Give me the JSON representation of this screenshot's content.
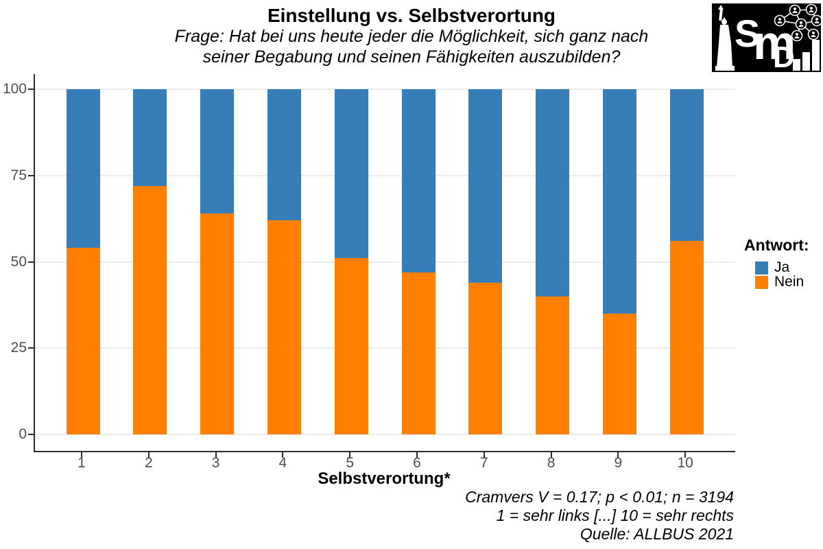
{
  "title": "Einstellung vs. Selbstverortung",
  "subtitle": [
    "Frage: Hat bei uns heute jeder die Möglichkeit, sich ganz nach",
    "seiner Begabung und seinen Fähigkeiten auszubilden?"
  ],
  "x_axis": {
    "title": "Selbstverortung*"
  },
  "y_axis": {
    "tick_values": [
      0,
      25,
      50,
      75,
      100
    ]
  },
  "legend": {
    "title": "Antwort:",
    "items": [
      {
        "label": "Ja",
        "color": "#377EB8"
      },
      {
        "label": "Nein",
        "color": "#FF7F00"
      }
    ]
  },
  "caption": [
    "Cramvers V = 0.17; p < 0.01; n = 3194",
    "1 = sehr links [...] 10 = sehr rechts",
    "Quelle: ALLBUS 2021"
  ],
  "logo": {
    "letters": [
      "S",
      "m",
      "D"
    ]
  },
  "chart_data": {
    "type": "bar",
    "stacked": true,
    "stack_unit": "percent",
    "categories": [
      "1",
      "2",
      "3",
      "4",
      "5",
      "6",
      "7",
      "8",
      "9",
      "10"
    ],
    "series": [
      {
        "name": "Ja",
        "color": "#377EB8",
        "values": [
          46,
          28,
          36,
          38,
          49,
          53,
          56,
          60,
          65,
          44
        ]
      },
      {
        "name": "Nein",
        "color": "#FF7F00",
        "values": [
          54,
          72,
          64,
          62,
          51,
          47,
          44,
          40,
          35,
          56
        ]
      }
    ],
    "title": "Einstellung vs. Selbstverortung",
    "xlabel": "Selbstverortung*",
    "ylabel": "",
    "ylim": [
      0,
      100
    ],
    "gridlines": [
      0,
      25,
      50,
      75,
      100
    ],
    "grid": true,
    "legend_position": "right"
  }
}
